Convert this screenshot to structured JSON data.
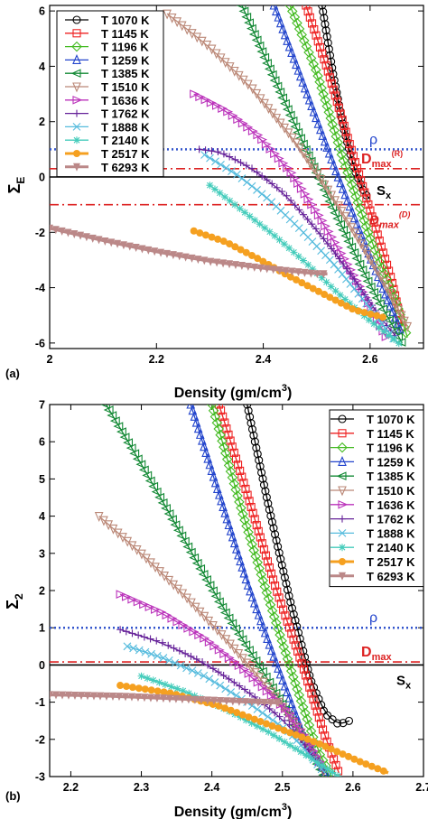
{
  "figure": {
    "panels": [
      {
        "label": "(a)",
        "ylabel_main": "Σ",
        "ylabel_sub": "E",
        "xlabel": "Density (gm/cm",
        "xlabel_sup": "3",
        "xlabel_end": ")"
      },
      {
        "label": "(b)",
        "ylabel_main": "Σ",
        "ylabel_sub": "2",
        "xlabel": "Density (gm/cm",
        "xlabel_sup": "3",
        "xlabel_end": ")"
      }
    ]
  },
  "chart_data": [
    {
      "type": "line",
      "panel": "(a)",
      "xlabel": "Density (gm/cm3)",
      "ylabel": "ΣE",
      "xlim": [
        2.0,
        2.7
      ],
      "ylim": [
        -6.2,
        6.2
      ],
      "xticks": [
        "2",
        "2.2",
        "2.4",
        "2.6"
      ],
      "xtick_values": [
        2.0,
        2.2,
        2.4,
        2.6
      ],
      "yticks": [
        "-6",
        "-4",
        "-2",
        "0",
        "2",
        "4",
        "6"
      ],
      "ytick_values": [
        -6,
        -4,
        -2,
        0,
        2,
        4,
        6
      ],
      "legend_position": "top-left",
      "annotations": {
        "rho": "ρ",
        "dmax_main": "D",
        "dmax_sub": "max",
        "dmax_r_sup": "(R)",
        "dmax_d_sup": "(D)",
        "sx_main": "S",
        "sx_sub": "x"
      },
      "reference_lines": [
        {
          "name": "ρ",
          "y": 1.0,
          "style": "dotted",
          "color": "#3355cc"
        },
        {
          "name": "Dmax(R)",
          "y": 0.3,
          "style": "dashdot",
          "color": "#dd2222"
        },
        {
          "name": "Dmax(D)",
          "y": -1.0,
          "style": "dashdot",
          "color": "#dd2222"
        },
        {
          "name": "Sx",
          "y": 0.0,
          "style": "solid",
          "color": "#000000"
        }
      ],
      "series": [
        {
          "name": "T 1070 K",
          "color": "#000000",
          "marker": "circle",
          "x": [
            2.51,
            2.53,
            2.55,
            2.57,
            2.59,
            2.6
          ],
          "y": [
            6.2,
            3.8,
            1.8,
            0.3,
            -0.6,
            -0.8
          ]
        },
        {
          "name": "T 1145 K",
          "color": "#ee2222",
          "marker": "square",
          "x": [
            2.48,
            2.52,
            2.56,
            2.6,
            2.64,
            2.66
          ],
          "y": [
            6.2,
            3.9,
            1.3,
            -1.2,
            -3.7,
            -5.4
          ]
        },
        {
          "name": "T 1196 K",
          "color": "#44bb22",
          "marker": "diamond",
          "x": [
            2.45,
            2.5,
            2.55,
            2.6,
            2.65,
            2.67
          ],
          "y": [
            6.2,
            3.8,
            0.6,
            -2.2,
            -4.6,
            -5.8
          ]
        },
        {
          "name": "T 1259 K",
          "color": "#2244cc",
          "marker": "triangle-up",
          "x": [
            2.42,
            2.48,
            2.54,
            2.6,
            2.66
          ],
          "y": [
            6.2,
            3.1,
            0.0,
            -2.9,
            -5.7
          ]
        },
        {
          "name": "T 1385 K",
          "color": "#118833",
          "marker": "triangle-left",
          "x": [
            2.36,
            2.42,
            2.48,
            2.54,
            2.6,
            2.66
          ],
          "y": [
            6.2,
            3.6,
            1.0,
            -1.5,
            -3.9,
            -6.0
          ]
        },
        {
          "name": "T 1510 K",
          "color": "#bb8877",
          "marker": "triangle-down",
          "x": [
            2.22,
            2.3,
            2.38,
            2.46,
            2.54,
            2.62,
            2.67
          ],
          "y": [
            5.9,
            4.7,
            3.2,
            1.3,
            -1.0,
            -3.6,
            -5.4
          ]
        },
        {
          "name": "T 1636 K",
          "color": "#bb33bb",
          "marker": "triangle-right",
          "x": [
            2.27,
            2.33,
            2.39,
            2.45,
            2.51,
            2.57,
            2.63
          ],
          "y": [
            3.0,
            2.4,
            1.5,
            0.2,
            -1.6,
            -3.6,
            -5.8
          ]
        },
        {
          "name": "T 1762 K",
          "color": "#662299",
          "marker": "plus",
          "x": [
            2.28,
            2.32,
            2.38,
            2.44,
            2.5,
            2.56,
            2.62,
            2.65
          ],
          "y": [
            1.0,
            0.9,
            0.3,
            -0.6,
            -1.9,
            -3.4,
            -5.1,
            -5.8
          ]
        },
        {
          "name": "T 1888 K",
          "color": "#55bbdd",
          "marker": "x",
          "x": [
            2.29,
            2.35,
            2.41,
            2.47,
            2.53,
            2.59,
            2.65
          ],
          "y": [
            0.8,
            0.1,
            -0.8,
            -1.9,
            -3.1,
            -4.5,
            -6.0
          ]
        },
        {
          "name": "T 2140 K",
          "color": "#44ccbb",
          "marker": "asterisk",
          "x": [
            2.3,
            2.36,
            2.42,
            2.48,
            2.54,
            2.6,
            2.66
          ],
          "y": [
            -0.3,
            -1.2,
            -2.1,
            -3.1,
            -4.2,
            -5.2,
            -6.1
          ]
        },
        {
          "name": "T 2517 K",
          "color": "#f5a020",
          "marker": "filled-circle",
          "x": [
            2.27,
            2.33,
            2.39,
            2.45,
            2.51,
            2.57,
            2.63
          ],
          "y": [
            -1.95,
            -2.35,
            -2.95,
            -3.6,
            -4.2,
            -4.8,
            -5.1
          ]
        },
        {
          "name": "T 6293 K",
          "color": "#bb8888",
          "marker": "filled-triangle-down",
          "x": [
            2.0,
            2.1,
            2.2,
            2.3,
            2.4,
            2.5,
            2.52
          ],
          "y": [
            -1.85,
            -2.3,
            -2.7,
            -3.05,
            -3.3,
            -3.5,
            -3.5
          ]
        }
      ]
    },
    {
      "type": "line",
      "panel": "(b)",
      "xlabel": "Density (gm/cm3)",
      "ylabel": "Σ2",
      "xlim": [
        2.17,
        2.7
      ],
      "ylim": [
        -3.0,
        7.0
      ],
      "xticks": [
        "2.2",
        "2.3",
        "2.4",
        "2.5",
        "2.6",
        "2.7"
      ],
      "xtick_values": [
        2.2,
        2.3,
        2.4,
        2.5,
        2.6,
        2.7
      ],
      "yticks": [
        "-3",
        "-2",
        "-1",
        "0",
        "1",
        "2",
        "3",
        "4",
        "5",
        "6",
        "7"
      ],
      "ytick_values": [
        -3,
        -2,
        -1,
        0,
        1,
        2,
        3,
        4,
        5,
        6,
        7
      ],
      "legend_position": "top-right",
      "annotations": {
        "rho": "ρ",
        "dmax_main": "D",
        "dmax_sub": "max",
        "sx_main": "S",
        "sx_sub": "x"
      },
      "reference_lines": [
        {
          "name": "ρ",
          "y": 1.0,
          "style": "dotted",
          "color": "#3355cc"
        },
        {
          "name": "Dmax",
          "y": 0.08,
          "style": "dashdot",
          "color": "#dd2222"
        },
        {
          "name": "Sx",
          "y": 0.0,
          "style": "solid",
          "color": "#000000"
        }
      ],
      "series": [
        {
          "name": "T 1070 K",
          "color": "#000000",
          "marker": "circle",
          "x": [
            2.45,
            2.48,
            2.51,
            2.54,
            2.56,
            2.58,
            2.595
          ],
          "y": [
            7.0,
            4.3,
            1.8,
            -0.4,
            -1.3,
            -1.6,
            -1.5
          ]
        },
        {
          "name": "T 1145 K",
          "color": "#ee2222",
          "marker": "square",
          "x": [
            2.41,
            2.45,
            2.49,
            2.53,
            2.56,
            2.58
          ],
          "y": [
            7.0,
            4.6,
            2.1,
            -0.1,
            -1.9,
            -2.9
          ]
        },
        {
          "name": "T 1196 K",
          "color": "#44bb22",
          "marker": "diamond",
          "x": [
            2.4,
            2.44,
            2.48,
            2.52,
            2.55,
            2.57
          ],
          "y": [
            7.0,
            4.3,
            1.8,
            -0.6,
            -2.3,
            -3.0
          ]
        },
        {
          "name": "T 1259 K",
          "color": "#2244cc",
          "marker": "triangle-up",
          "x": [
            2.37,
            2.41,
            2.45,
            2.49,
            2.53,
            2.565
          ],
          "y": [
            7.0,
            4.6,
            2.2,
            0.1,
            -1.9,
            -3.0
          ]
        },
        {
          "name": "T 1385 K",
          "color": "#118833",
          "marker": "triangle-left",
          "x": [
            2.25,
            2.3,
            2.36,
            2.42,
            2.48,
            2.53,
            2.56
          ],
          "y": [
            7.0,
            5.4,
            3.4,
            1.4,
            -0.4,
            -2.0,
            -3.0
          ]
        },
        {
          "name": "T 1510 K",
          "color": "#bb8877",
          "marker": "triangle-down",
          "x": [
            2.24,
            2.3,
            2.36,
            2.42,
            2.48,
            2.53,
            2.56
          ],
          "y": [
            4.0,
            3.0,
            1.9,
            0.7,
            -0.6,
            -1.9,
            -2.9
          ]
        },
        {
          "name": "T 1636 K",
          "color": "#bb33bb",
          "marker": "triangle-right",
          "x": [
            2.27,
            2.33,
            2.39,
            2.45,
            2.51,
            2.555
          ],
          "y": [
            1.9,
            1.4,
            0.7,
            -0.2,
            -1.3,
            -2.7
          ]
        },
        {
          "name": "T 1762 K",
          "color": "#662299",
          "marker": "plus",
          "x": [
            2.27,
            2.33,
            2.39,
            2.45,
            2.51,
            2.56
          ],
          "y": [
            0.95,
            0.6,
            0.05,
            -0.7,
            -1.6,
            -2.9
          ]
        },
        {
          "name": "T 1888 K",
          "color": "#55bbdd",
          "marker": "x",
          "x": [
            2.28,
            2.33,
            2.39,
            2.45,
            2.51,
            2.56
          ],
          "y": [
            0.5,
            0.2,
            -0.3,
            -1.0,
            -1.8,
            -2.9
          ]
        },
        {
          "name": "T 2140 K",
          "color": "#44ccbb",
          "marker": "asterisk",
          "x": [
            2.3,
            2.36,
            2.42,
            2.48,
            2.54,
            2.58
          ],
          "y": [
            -0.3,
            -0.7,
            -1.2,
            -1.8,
            -2.5,
            -3.0
          ]
        },
        {
          "name": "T 2517 K",
          "color": "#f5a020",
          "marker": "filled-circle",
          "x": [
            2.27,
            2.34,
            2.41,
            2.48,
            2.55,
            2.61,
            2.65
          ],
          "y": [
            -0.55,
            -0.75,
            -1.1,
            -1.6,
            -2.1,
            -2.6,
            -2.9
          ]
        },
        {
          "name": "T 6293 K",
          "color": "#bb8888",
          "marker": "filled-triangle-down",
          "x": [
            2.17,
            2.22,
            2.28,
            2.34,
            2.4,
            2.46,
            2.5
          ],
          "y": [
            -0.8,
            -0.82,
            -0.85,
            -0.9,
            -0.95,
            -1.0,
            -1.02
          ]
        }
      ]
    }
  ]
}
